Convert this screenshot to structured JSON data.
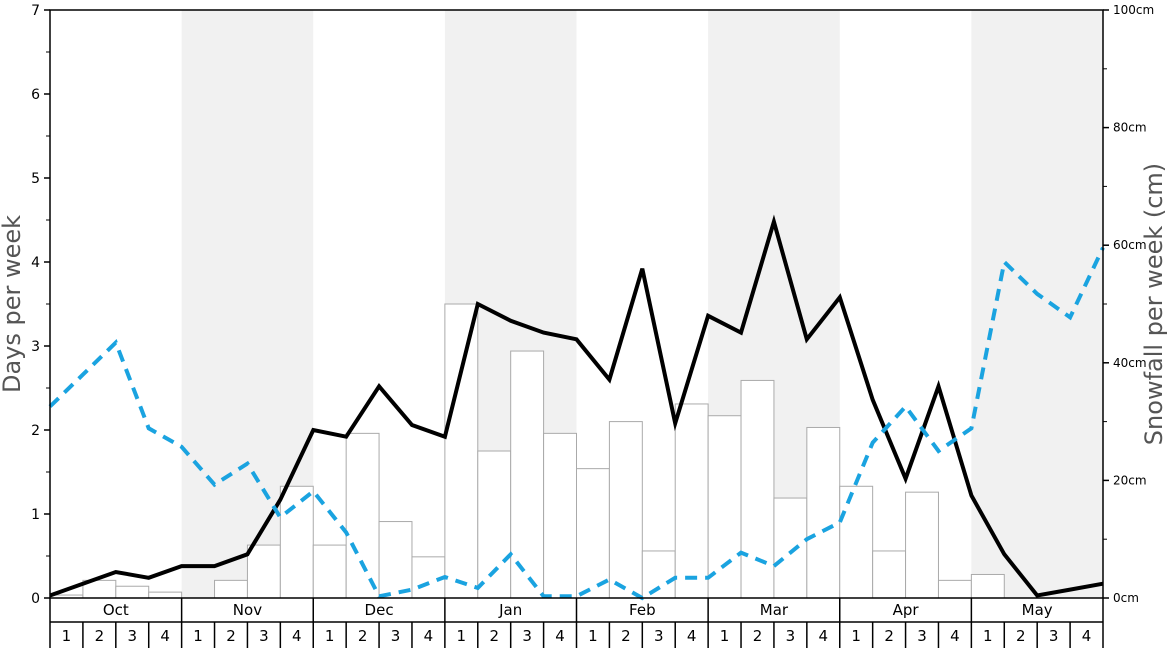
{
  "chart_data": {
    "type": "bar+line",
    "ylabel_left": "Days per week",
    "ylabel_right": "Snowfall per week (cm)",
    "ylim_left": [
      0,
      7
    ],
    "ylim_right": [
      0,
      100
    ],
    "left_ticks": [
      "0",
      "1",
      "2",
      "3",
      "4",
      "5",
      "6",
      "7"
    ],
    "right_ticks": [
      "0cm",
      "20cm",
      "40cm",
      "60cm",
      "80cm",
      "100cm"
    ],
    "months": [
      "Oct",
      "Nov",
      "Dec",
      "Jan",
      "Feb",
      "Mar",
      "Apr",
      "May"
    ],
    "weeks": [
      "1",
      "2",
      "3",
      "4"
    ],
    "shaded_months": [
      "Nov",
      "Jan",
      "Mar",
      "May"
    ],
    "series": [
      {
        "kind": "bar",
        "axis": "right",
        "unit": "cm",
        "values": [
          0.5,
          3,
          2,
          1,
          0,
          3,
          9,
          19,
          9,
          28,
          13,
          7,
          50,
          25,
          42,
          28,
          22,
          30,
          8,
          33,
          31,
          37,
          17,
          29,
          19,
          8,
          18,
          3,
          4,
          0,
          0,
          0
        ]
      },
      {
        "kind": "line",
        "axis": "left",
        "style": "solid",
        "color": "#000000",
        "values": [
          0.03,
          0.17,
          0.31,
          0.24,
          0.38,
          0.38,
          0.52,
          1.17,
          2.0,
          1.92,
          2.52,
          2.06,
          1.92,
          3.5,
          3.3,
          3.16,
          3.08,
          2.6,
          3.92,
          2.08,
          3.36,
          3.16,
          4.48,
          3.08,
          3.58,
          2.36,
          1.42,
          2.52,
          1.22,
          0.52,
          0.03,
          0.1,
          0.17
        ]
      },
      {
        "kind": "line",
        "axis": "left",
        "style": "dashed",
        "color": "#1aa3e0",
        "values": [
          2.28,
          2.66,
          3.04,
          2.02,
          1.8,
          1.35,
          1.6,
          0.96,
          1.27,
          0.78,
          0.02,
          0.1,
          0.25,
          0.12,
          0.52,
          0.02,
          0.02,
          0.22,
          0.0,
          0.24,
          0.24,
          0.54,
          0.38,
          0.7,
          0.9,
          1.85,
          2.28,
          1.75,
          2.02,
          4.0,
          3.62,
          3.34,
          4.17
        ]
      }
    ]
  }
}
